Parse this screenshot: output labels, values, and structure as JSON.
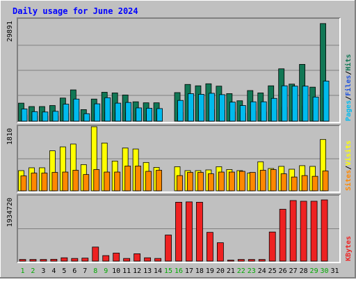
{
  "chart_data": {
    "type": "bar",
    "title": "Daily usage for June 2024",
    "categories": [
      "1",
      "2",
      "3",
      "4",
      "5",
      "6",
      "7",
      "8",
      "9",
      "10",
      "11",
      "12",
      "13",
      "14",
      "15",
      "16",
      "17",
      "18",
      "19",
      "20",
      "21",
      "22",
      "23",
      "24",
      "25",
      "26",
      "27",
      "28",
      "29",
      "30",
      "31"
    ],
    "weekend_days": [
      "1",
      "2",
      "8",
      "9",
      "15",
      "16",
      "22",
      "23",
      "29",
      "30"
    ],
    "panels": [
      {
        "id": "hits-files-pages",
        "max_label": "29891",
        "ymax": 29891,
        "series": [
          {
            "name": "Hits",
            "color": "#117755",
            "values": [
              5300,
              4300,
              4300,
              4600,
              6800,
              9200,
              3400,
              6500,
              8500,
              8300,
              7700,
              5700,
              5400,
              5400,
              0,
              8400,
              10800,
              10400,
              11000,
              10300,
              8100,
              6000,
              9000,
              8300,
              10400,
              15400,
              10900,
              16700,
              10000,
              28700,
              0
            ]
          },
          {
            "name": "Files",
            "color": "#2255dd",
            "values": [
              1800,
              1500,
              1500,
              1500,
              2300,
              2700,
              1300,
              2200,
              2600,
              2500,
              2500,
              2100,
              2000,
              2000,
              0,
              2600,
              3400,
              3300,
              3400,
              3200,
              2700,
              2300,
              2900,
              2700,
              3300,
              4100,
              3400,
              4500,
              3200,
              6800,
              0
            ]
          },
          {
            "name": "Pages",
            "color": "#00bbee",
            "values": [
              3600,
              2800,
              2700,
              2900,
              5000,
              6500,
              2200,
              5100,
              6900,
              5300,
              5500,
              3900,
              3800,
              3700,
              0,
              6100,
              8100,
              7900,
              8200,
              7800,
              5600,
              4600,
              5700,
              5700,
              6700,
              10400,
              10300,
              10300,
              7100,
              11800,
              0
            ]
          }
        ],
        "labels": [
          "Pages",
          "/",
          "Files",
          "/",
          "Hits"
        ],
        "label_colors": [
          "#00bbee",
          "#000000",
          "#2255dd",
          "#000000",
          "#117755"
        ]
      },
      {
        "id": "visits-sites",
        "max_label": "1810",
        "ymax": 1810,
        "series": [
          {
            "name": "Visits",
            "color": "#ffff00",
            "values": [
              570,
              650,
              650,
              1130,
              1240,
              1320,
              740,
              1810,
              1350,
              840,
              1210,
              1180,
              800,
              660,
              0,
              680,
              570,
              570,
              590,
              680,
              600,
              570,
              500,
              820,
              630,
              690,
              610,
              710,
              690,
              1450,
              0
            ]
          },
          {
            "name": "Sites",
            "color": "#ff8800",
            "values": [
              420,
              500,
              500,
              520,
              530,
              580,
              460,
              600,
              530,
              530,
              700,
              700,
              550,
              580,
              0,
              430,
              520,
              520,
              480,
              530,
              530,
              550,
              520,
              580,
              600,
              480,
              390,
              430,
              410,
              560,
              0
            ]
          }
        ],
        "labels": [
          "Sites",
          "/",
          "Visits"
        ],
        "label_colors": [
          "#ff8800",
          "#000000",
          "#ffff00"
        ]
      },
      {
        "id": "kbytes",
        "max_label": "1934720",
        "ymax": 1934720,
        "series": [
          {
            "name": "KBytes",
            "color": "#ee2222",
            "values": [
              50000,
              50000,
              50000,
              55000,
              100000,
              80000,
              90000,
              420000,
              165000,
              240000,
              80000,
              220000,
              100000,
              80000,
              780000,
              1760000,
              1770000,
              1760000,
              860000,
              550000,
              30000,
              50000,
              50000,
              50000,
              870000,
              1550000,
              1810000,
              1790000,
              1790000,
              1830000,
              0
            ]
          }
        ],
        "labels": [
          "KBytes"
        ],
        "label_colors": [
          "#ee2222"
        ]
      }
    ]
  },
  "colors": {
    "background": "#c0c0c0",
    "frame_light": "#ffffff",
    "frame_dark": "#808080",
    "title": "#0000ff",
    "weekday_label": "#000000",
    "weekend_label": "#00aa00",
    "gridline": "#808080"
  }
}
